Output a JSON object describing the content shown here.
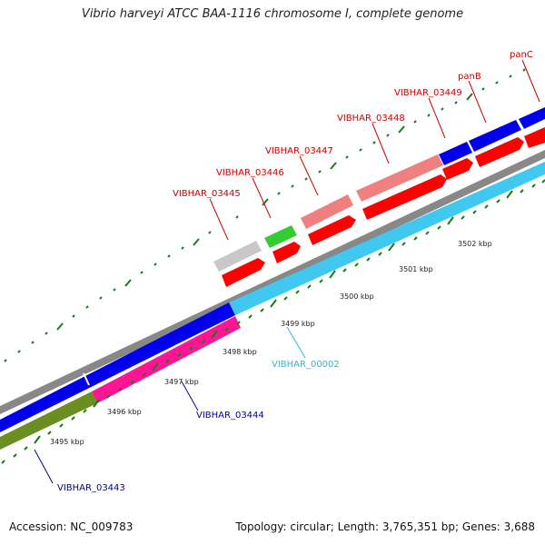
{
  "title": "Vibrio harveyi ATCC BAA-1116 chromosome I, complete genome",
  "footer": {
    "accession": "Accession: NC_009783",
    "summary": "Topology: circular; Length: 3,765,351 bp; Genes: 3,688"
  },
  "scale_labels": [
    "3495 kbp",
    "3496 kbp",
    "3497 kbp",
    "3498 kbp",
    "3499 kbp",
    "3500 kbp",
    "3501 kbp",
    "3502 kbp"
  ],
  "colors": {
    "red": "#ff0000",
    "pink": "#f08080",
    "blue": "#0000ee",
    "cyan": "#40c8f0",
    "magenta": "#ff1493",
    "olive": "#6b8e23",
    "green": "#33cc33",
    "gray": "#c8c8c8",
    "tick": "#1a7a1a",
    "label_red": "#cc0000",
    "label_blue": "#000099",
    "label_cyan": "#22bbdd"
  },
  "gene_labels": {
    "VIBHAR_03445": "VIBHAR_03445",
    "VIBHAR_03446": "VIBHAR_03446",
    "VIBHAR_03447": "VIBHAR_03447",
    "VIBHAR_03448": "VIBHAR_03448",
    "VIBHAR_03449": "VIBHAR_03449",
    "panB": "panB",
    "panC": "panC",
    "VIBHAR_00002": "VIBHAR_00002",
    "VIBHAR_03444": "VIBHAR_03444",
    "VIBHAR_03443": "VIBHAR_03443"
  }
}
